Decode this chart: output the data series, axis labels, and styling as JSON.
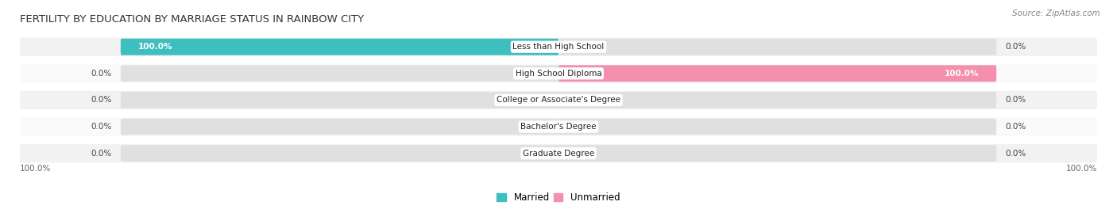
{
  "title": "FERTILITY BY EDUCATION BY MARRIAGE STATUS IN RAINBOW CITY",
  "source": "Source: ZipAtlas.com",
  "categories": [
    "Less than High School",
    "High School Diploma",
    "College or Associate's Degree",
    "Bachelor's Degree",
    "Graduate Degree"
  ],
  "married_values": [
    100.0,
    0.0,
    0.0,
    0.0,
    0.0
  ],
  "unmarried_values": [
    0.0,
    100.0,
    0.0,
    0.0,
    0.0
  ],
  "married_color": "#3DBFBF",
  "unmarried_color": "#F48FAE",
  "bar_bg_color": "#E0E0E0",
  "row_bg_even": "#F2F2F2",
  "row_bg_odd": "#FAFAFA",
  "label_bg_color": "#FFFFFF",
  "axis_max": 100.0,
  "title_fontsize": 9.5,
  "source_fontsize": 7.5,
  "bar_label_fontsize": 7.5,
  "category_fontsize": 7.5,
  "legend_fontsize": 8.5,
  "footer_fontsize": 7.5,
  "bar_height": 0.62,
  "background_color": "#FFFFFF"
}
